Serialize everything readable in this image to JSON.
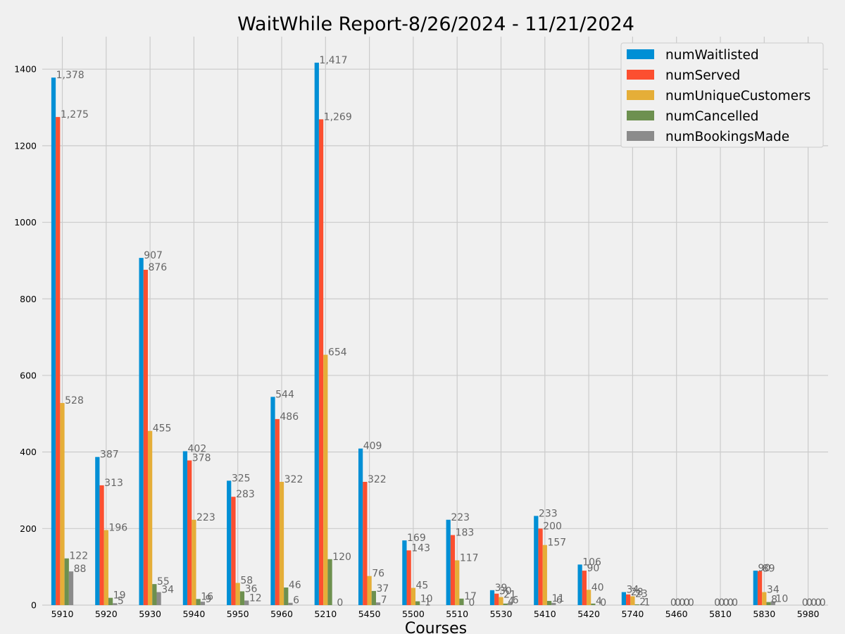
{
  "chart_data": {
    "type": "bar",
    "title": "WaitWhile Report-8/26/2024 - 11/21/2024",
    "xlabel": "Courses",
    "ylabel": "",
    "categories": [
      "5910",
      "5920",
      "5930",
      "5940",
      "5950",
      "5960",
      "5210",
      "5450",
      "5500",
      "5510",
      "5530",
      "5410",
      "5420",
      "5740",
      "5460",
      "5810",
      "5830",
      "5980"
    ],
    "ylim": [
      0,
      1485
    ],
    "yticks": [
      0,
      200,
      400,
      600,
      800,
      1000,
      1200,
      1400
    ],
    "grid": true,
    "legend_position": "top-right",
    "series": [
      {
        "name": "numWaitlisted",
        "color": "#008fd5",
        "values": [
          1378,
          387,
          907,
          402,
          325,
          544,
          1417,
          409,
          169,
          223,
          39,
          233,
          106,
          34,
          0,
          0,
          90,
          0
        ],
        "labels": [
          "1,378",
          "387",
          "907",
          "402",
          "325",
          "544",
          "1,417",
          "409",
          "169",
          "223",
          "39",
          "233",
          "106",
          "34",
          "0",
          "0",
          "90",
          "0"
        ]
      },
      {
        "name": "numServed",
        "color": "#fc4f30",
        "values": [
          1275,
          313,
          876,
          378,
          283,
          486,
          1269,
          322,
          143,
          183,
          30,
          200,
          90,
          28,
          0,
          0,
          89,
          0
        ],
        "labels": [
          "1,275",
          "313",
          "876",
          "378",
          "283",
          "486",
          "1,269",
          "322",
          "143",
          "183",
          "30",
          "200",
          "90",
          "28",
          "0",
          "0",
          "89",
          "0"
        ]
      },
      {
        "name": "numUniqueCustomers",
        "color": "#e5ae38",
        "values": [
          528,
          196,
          455,
          223,
          58,
          322,
          654,
          76,
          45,
          117,
          21,
          157,
          40,
          23,
          0,
          0,
          34,
          0
        ],
        "labels": [
          "528",
          "196",
          "455",
          "223",
          "58",
          "322",
          "654",
          "76",
          "45",
          "117",
          "21",
          "157",
          "40",
          "23",
          "0",
          "0",
          "34",
          "0"
        ]
      },
      {
        "name": "numCancelled",
        "color": "#6d904f",
        "values": [
          122,
          19,
          55,
          16,
          36,
          46,
          120,
          37,
          10,
          17,
          4,
          11,
          4,
          2,
          0,
          0,
          8,
          0
        ],
        "labels": [
          "122",
          "19",
          "55",
          "16",
          "36",
          "46",
          "120",
          "37",
          "10",
          "17",
          "4",
          "11",
          "4",
          "2",
          "0",
          "0",
          "8",
          "0"
        ]
      },
      {
        "name": "numBookingsMade",
        "color": "#8b8b8b",
        "values": [
          88,
          5,
          34,
          9,
          12,
          6,
          0,
          7,
          1,
          0,
          6,
          6,
          0,
          1,
          0,
          0,
          10,
          0
        ],
        "labels": [
          "88",
          "5",
          "34",
          "9",
          "12",
          "6",
          "0",
          "7",
          "1",
          "0",
          "6",
          "6",
          "0",
          "1",
          "0",
          "0",
          "10",
          "0"
        ]
      }
    ]
  }
}
